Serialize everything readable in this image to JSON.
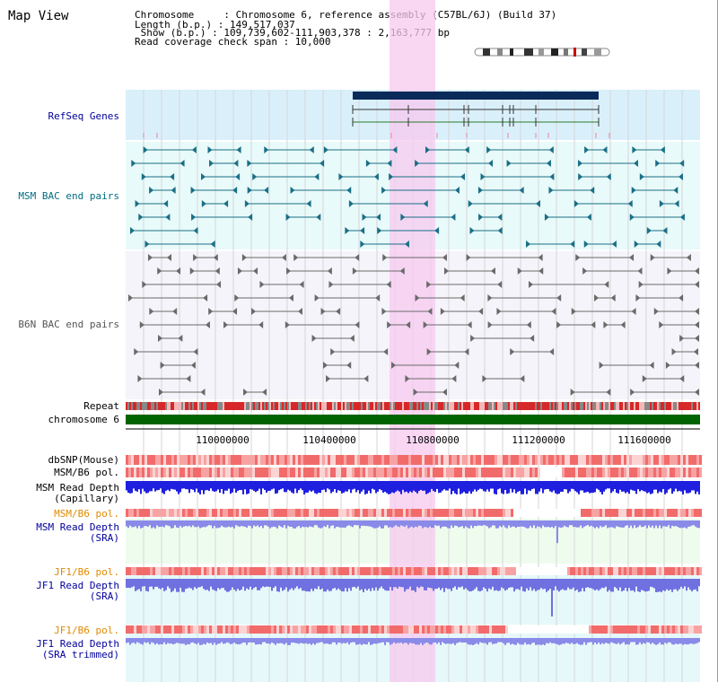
{
  "view_title": "Map View",
  "info": {
    "chromosome": "Chromosome     : Chromosome 6, reference assembly (C57BL/6J) (Build 37)",
    "length": "Length (b.p.) : 149,517,037",
    "show": " Show (b.p.) : 109,739,602-111,903,378 : 2,163,777 bp",
    "coverage": "Read coverage check span : 10,000"
  },
  "tracks": {
    "refseq": "RefSeq Genes",
    "msm_bac": "MSM BAC end pairs",
    "b6n_bac": "B6N BAC end pairs",
    "repeat": "Repeat",
    "chromosome": "chromosome 6",
    "dbsnp": "dbSNP(Mouse)",
    "msm_pol1": "MSM/B6 pol.",
    "msm_depth_cap_1": "MSM Read Depth",
    "msm_depth_cap_2": "(Capillary)",
    "msm_pol2": "MSM/B6 pol.",
    "msm_depth_sra_1": "MSM Read Depth",
    "msm_depth_sra_2": "(SRA)",
    "jf1_pol1": "JF1/B6 pol.",
    "jf1_depth_sra_1": "JF1 Read Depth",
    "jf1_depth_sra_2": "(SRA)",
    "jf1_pol2": "JF1/B6 pol.",
    "jf1_depth_trim_1": "JF1 Read Depth",
    "jf1_depth_trim_2": "(SRA trimmed)"
  },
  "axis": {
    "ticks": [
      "110000000",
      "110400000",
      "110800000",
      "111200000",
      "111600000"
    ]
  },
  "colors": {
    "refseq_label": "#00009c",
    "msm_label": "#006d80",
    "b6n_label": "#555555",
    "pol_label": "#e08a00",
    "depth_label": "#00009c",
    "highlight": "#f7c9ef",
    "chromosome_bar": "#006400"
  }
}
